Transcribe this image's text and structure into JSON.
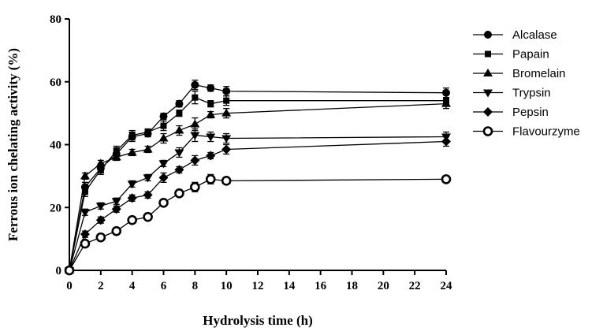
{
  "chart_data": {
    "type": "line",
    "title": "",
    "xlabel": "Hydrolysis time (h)",
    "ylabel": "Ferrous ion chelating activity (%)",
    "xlim": [
      0,
      24
    ],
    "ylim": [
      0,
      80
    ],
    "x_ticks": [
      "0",
      "2",
      "4",
      "6",
      "8",
      "10",
      "12",
      "14",
      "16",
      "18",
      "20",
      "22",
      "24"
    ],
    "y_ticks": [
      "0",
      "20",
      "40",
      "60",
      "80"
    ],
    "grid": false,
    "legend_position": "right",
    "x": [
      0,
      1,
      2,
      3,
      4,
      5,
      6,
      7,
      8,
      9,
      10,
      24
    ],
    "series": [
      {
        "name": "Alcalase",
        "marker": "circle-filled",
        "values": [
          0,
          26.5,
          32.5,
          37,
          42.5,
          43.5,
          49,
          53,
          59,
          58,
          57,
          56.5
        ],
        "errors": [
          0,
          1.5,
          1.5,
          2,
          1.5,
          1,
          1,
          1,
          1.5,
          1,
          1.5,
          1.5
        ]
      },
      {
        "name": "Papain",
        "marker": "square",
        "values": [
          0,
          25,
          32,
          38,
          43,
          44,
          46,
          50,
          55,
          53,
          54,
          54
        ],
        "errors": [
          0,
          1.5,
          1.5,
          1.5,
          1.5,
          1,
          1.5,
          1,
          2,
          1,
          1.5,
          1
        ]
      },
      {
        "name": "Bromelain",
        "marker": "triangle-up",
        "values": [
          0,
          30,
          34,
          36,
          37.5,
          38.5,
          42,
          44.5,
          46.5,
          49.5,
          50,
          53
        ],
        "errors": [
          0,
          1,
          1,
          1,
          1,
          1,
          1.5,
          1.5,
          2,
          1,
          1.5,
          1.5
        ]
      },
      {
        "name": "Trypsin",
        "marker": "triangle-down",
        "values": [
          0,
          18.5,
          20.5,
          22,
          27.5,
          29.5,
          34,
          37.5,
          43,
          42.5,
          42,
          42.5
        ],
        "errors": [
          0,
          1,
          1,
          1,
          1,
          1,
          1,
          1.5,
          2,
          1.5,
          1.5,
          1.5
        ]
      },
      {
        "name": "Pepsin",
        "marker": "diamond",
        "values": [
          0,
          11.5,
          16,
          19.5,
          23,
          24,
          29.5,
          32,
          35,
          36.5,
          38.5,
          41
        ],
        "errors": [
          0,
          1,
          1,
          1,
          1,
          1,
          1.5,
          1,
          1.5,
          1,
          1.5,
          1.5
        ]
      },
      {
        "name": "Flavourzyme",
        "marker": "circle-open",
        "values": [
          0,
          8.5,
          10.5,
          12.5,
          16,
          17,
          21.5,
          24.5,
          26.5,
          29,
          28.5,
          29
        ],
        "errors": [
          0,
          1,
          1,
          1,
          1,
          1,
          1,
          1,
          1.5,
          1.5,
          1,
          1
        ]
      }
    ]
  },
  "colors": {
    "ink": "#000000",
    "background": "#ffffff"
  }
}
